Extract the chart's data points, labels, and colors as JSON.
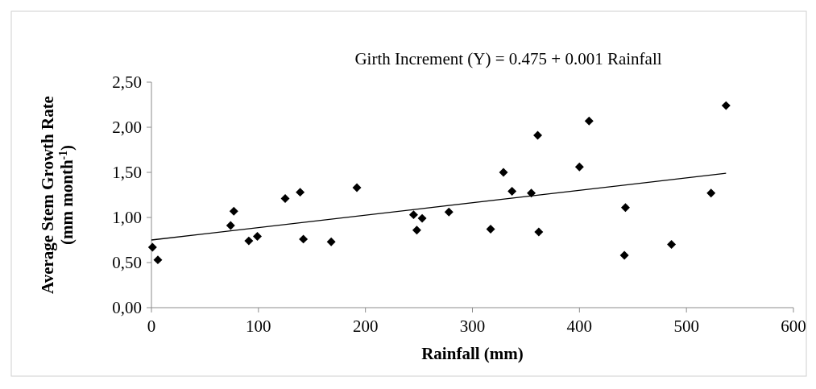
{
  "chart_data": {
    "type": "scatter",
    "xlabel": "Rainfall (mm)",
    "ylabel": "Average Stem Growth Rate (mm month$^{-1}$)",
    "annotations": [
      "Girth Increment (Y) = 0.475 + 0.001 Rainfall"
    ],
    "marker": "diamond",
    "xlim": [
      0,
      600
    ],
    "xticks": [
      0,
      100,
      200,
      300,
      400,
      500,
      600
    ],
    "ylim": [
      0,
      2.5
    ],
    "yticks": [
      {
        "value": 0,
        "label": "0,00"
      },
      {
        "value": 0.5,
        "label": "0,50"
      },
      {
        "value": 1,
        "label": "1,00"
      },
      {
        "value": 1.5,
        "label": "1,50"
      },
      {
        "value": 2,
        "label": "2,00"
      },
      {
        "value": 2.5,
        "label": "2,50"
      }
    ],
    "series": [
      {
        "color": "#000000",
        "x": [
          1,
          6,
          74,
          77,
          91,
          99,
          125,
          139,
          142,
          168,
          192,
          245,
          248,
          253,
          278,
          317,
          329,
          337,
          355,
          361,
          362,
          400,
          409,
          442,
          443,
          486,
          523,
          537
        ],
        "values": [
          0.67,
          0.53,
          0.91,
          1.07,
          0.74,
          0.79,
          1.21,
          1.28,
          0.76,
          0.73,
          1.33,
          1.03,
          0.86,
          0.99,
          1.06,
          0.87,
          1.5,
          1.29,
          1.27,
          1.91,
          0.84,
          1.56,
          2.07,
          0.58,
          1.11,
          0.7,
          1.27,
          2.24
        ]
      },
      {
        "type": "line",
        "color": "#000000",
        "x": [
          0,
          537
        ],
        "values": [
          0.75,
          1.49
        ],
        "marker": "none",
        "line_style": "solid"
      }
    ]
  }
}
